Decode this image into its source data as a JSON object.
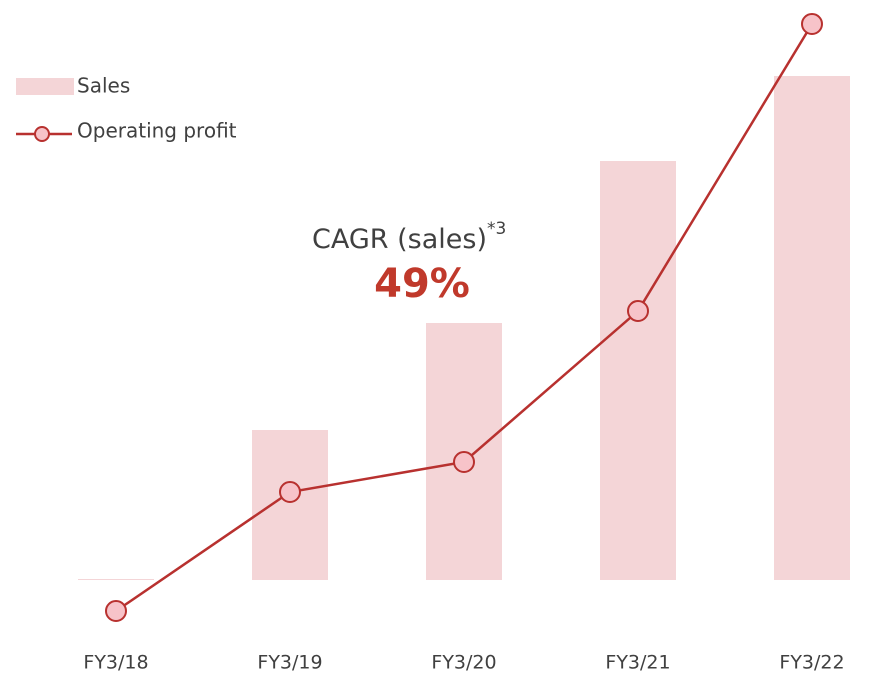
{
  "chart_data": {
    "type": "bar_line",
    "categories": [
      "FY3/18",
      "FY3/19",
      "FY3/20",
      "FY3/21",
      "FY3/22"
    ],
    "series": [
      {
        "name": "Sales",
        "type": "bar",
        "color": "#f4d5d7",
        "values": [
          1,
          150,
          257,
          419,
          504
        ]
      },
      {
        "name": "Operating profit",
        "type": "line",
        "color": "#b8312f",
        "marker_color": "#f7c3c9",
        "values": [
          -31,
          88,
          118,
          269,
          556
        ]
      }
    ],
    "ylim": [
      -50,
      580
    ],
    "annotation": {
      "label": "CAGR (sales)",
      "footnote": "*3",
      "value": "49%"
    }
  }
}
